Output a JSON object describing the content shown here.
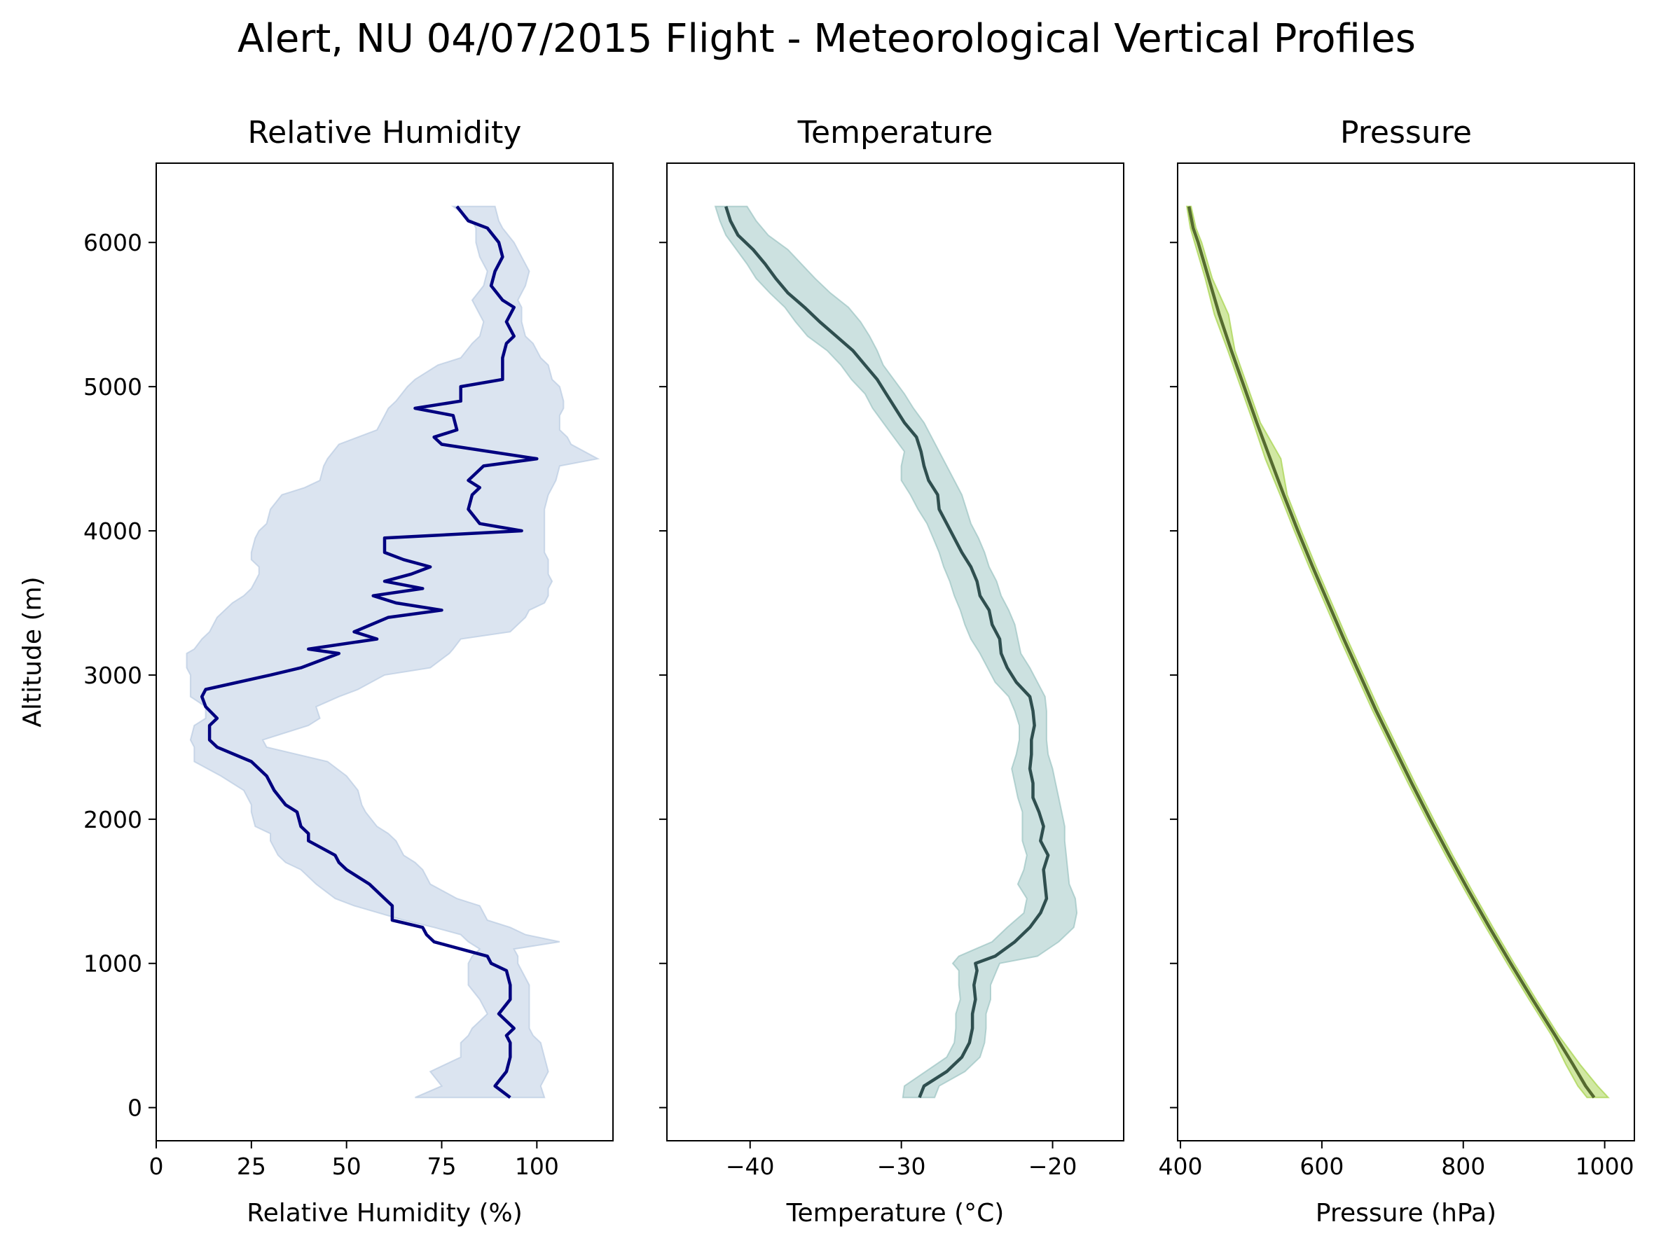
{
  "suptitle": "Alert, NU 04/07/2015 Flight - Meteorological Vertical Profiles",
  "chart_data": [
    {
      "type": "line",
      "title": "Relative Humidity",
      "xlabel": "Relative Humidity (%)",
      "ylabel": "Altitude (m)",
      "xlim": [
        0,
        120
      ],
      "ylim": [
        -230,
        6550
      ],
      "xticks": [
        0,
        25,
        50,
        75,
        100
      ],
      "yticks": [
        0,
        1000,
        2000,
        3000,
        4000,
        5000,
        6000
      ],
      "line_color": "#00007f",
      "band_color": "#b0c4de",
      "series": [
        {
          "altitude": [
            70,
            150,
            250,
            350,
            450,
            500,
            550,
            650,
            750,
            850,
            950,
            1000,
            1050,
            1100,
            1150,
            1200,
            1250,
            1300,
            1400,
            1450,
            1550,
            1650,
            1700,
            1750,
            1850,
            1900,
            1950,
            2050,
            2100,
            2200,
            2300,
            2400,
            2500,
            2550,
            2650,
            2700,
            2780,
            2850,
            2900,
            3000,
            3050,
            3150,
            3180,
            3250,
            3300,
            3400,
            3450,
            3500,
            3550,
            3600,
            3650,
            3700,
            3750,
            3800,
            3850,
            3950,
            4000,
            4050,
            4150,
            4250,
            4300,
            4350,
            4450,
            4500,
            4600,
            4650,
            4700,
            4800,
            4850,
            4900,
            5000,
            5050,
            5150,
            5200,
            5300,
            5350,
            5450,
            5550,
            5600,
            5700,
            5800,
            5900,
            6000,
            6100,
            6150,
            6250
          ],
          "values": [
            93,
            89,
            92,
            93,
            93,
            92,
            94,
            90,
            93,
            93,
            92,
            88,
            87,
            80,
            73,
            71,
            70,
            62,
            62,
            60,
            56,
            50,
            48,
            47,
            40,
            40,
            38,
            37,
            34,
            31,
            29,
            25,
            16,
            14,
            14,
            16,
            13,
            12,
            13,
            30,
            38,
            48,
            40,
            58,
            52,
            61,
            75,
            63,
            57,
            70,
            60,
            67,
            72,
            65,
            60,
            60,
            96,
            85,
            82,
            83,
            85,
            82,
            86,
            100,
            75,
            73,
            79,
            78,
            68,
            80,
            80,
            91,
            91,
            91,
            92,
            94,
            92,
            94,
            91,
            88,
            89,
            91,
            90,
            87,
            82,
            79
          ],
          "lower": [
            68,
            75,
            72,
            80,
            80,
            82,
            83,
            87,
            85,
            82,
            82,
            82,
            83,
            85,
            82,
            80,
            73,
            65,
            52,
            47,
            42,
            38,
            34,
            32,
            30,
            30,
            26,
            25,
            25,
            23,
            17,
            10,
            10,
            9,
            10,
            13,
            13,
            9,
            9,
            9,
            8,
            8,
            10,
            12,
            14,
            16,
            18,
            20,
            23,
            25,
            26,
            27,
            27,
            25,
            25,
            26,
            27,
            29,
            30,
            33,
            39,
            43,
            44,
            45,
            48,
            53,
            58,
            60,
            61,
            63,
            66,
            68,
            74,
            80,
            83,
            85,
            86,
            84,
            83,
            86,
            87,
            85,
            84,
            84,
            83,
            78
          ],
          "upper": [
            102,
            101,
            103,
            102,
            101,
            99,
            98,
            98,
            98,
            98,
            96,
            95,
            95,
            94,
            106,
            97,
            93,
            87,
            85,
            79,
            72,
            70,
            68,
            65,
            63,
            61,
            58,
            55,
            54,
            53,
            50,
            45,
            29,
            28,
            40,
            43,
            42,
            48,
            53,
            60,
            72,
            77,
            78,
            80,
            93,
            97,
            98,
            102,
            103,
            103,
            104,
            103,
            103,
            103,
            102,
            102,
            102,
            102,
            102,
            103,
            104,
            105,
            106,
            116,
            109,
            108,
            106,
            106,
            107,
            107,
            106,
            104,
            103,
            101,
            99,
            97,
            96,
            96,
            95,
            97,
            98,
            96,
            94,
            91,
            90,
            89
          ]
        }
      ]
    },
    {
      "type": "line",
      "title": "Temperature",
      "xlabel": "Temperature (°C)",
      "xlim": [
        -45.5,
        -15.3
      ],
      "xticks": [
        -40,
        -30,
        -20
      ],
      "line_color": "#2f4f4f",
      "band_color": "#8fbcbb",
      "series": [
        {
          "altitude": [
            70,
            150,
            250,
            350,
            450,
            550,
            650,
            750,
            850,
            950,
            1000,
            1050,
            1150,
            1250,
            1350,
            1450,
            1550,
            1650,
            1750,
            1850,
            1950,
            2050,
            2150,
            2250,
            2350,
            2450,
            2550,
            2650,
            2750,
            2850,
            2950,
            3050,
            3150,
            3250,
            3350,
            3450,
            3550,
            3650,
            3750,
            3850,
            3950,
            4050,
            4150,
            4250,
            4350,
            4450,
            4550,
            4650,
            4750,
            4850,
            4950,
            5050,
            5150,
            5250,
            5350,
            5450,
            5550,
            5650,
            5750,
            5850,
            5950,
            6050,
            6150,
            6250
          ],
          "values": [
            -28.8,
            -28.5,
            -27.0,
            -26.0,
            -25.5,
            -25.3,
            -25.3,
            -25.1,
            -25.2,
            -25.0,
            -25.1,
            -23.8,
            -22.5,
            -21.5,
            -20.8,
            -20.4,
            -20.5,
            -20.6,
            -20.3,
            -20.8,
            -20.6,
            -20.9,
            -21.3,
            -21.3,
            -21.5,
            -21.4,
            -21.4,
            -21.2,
            -21.3,
            -21.5,
            -22.4,
            -23.0,
            -23.4,
            -23.5,
            -24.0,
            -24.2,
            -24.8,
            -25.0,
            -25.4,
            -26.0,
            -26.5,
            -27.0,
            -27.5,
            -27.6,
            -28.2,
            -28.5,
            -28.7,
            -29.0,
            -29.8,
            -30.4,
            -31.0,
            -31.6,
            -32.4,
            -33.2,
            -34.3,
            -35.4,
            -36.4,
            -37.5,
            -38.3,
            -39.0,
            -39.8,
            -40.8,
            -41.3,
            -41.6
          ],
          "lower": [
            -29.9,
            -29.8,
            -28.4,
            -27.0,
            -26.5,
            -26.4,
            -26.4,
            -26.1,
            -26.2,
            -26.2,
            -26.6,
            -26.2,
            -24.0,
            -23.0,
            -21.9,
            -21.7,
            -22.3,
            -21.9,
            -21.7,
            -22.0,
            -22.0,
            -22.0,
            -22.3,
            -22.5,
            -22.7,
            -22.4,
            -22.2,
            -22.2,
            -22.5,
            -22.9,
            -23.8,
            -24.3,
            -24.8,
            -25.4,
            -25.8,
            -26.1,
            -26.5,
            -26.8,
            -27.2,
            -27.5,
            -27.9,
            -28.3,
            -28.9,
            -29.4,
            -30.0,
            -30.0,
            -29.8,
            -30.5,
            -31.2,
            -31.9,
            -32.4,
            -33.3,
            -34.0,
            -34.9,
            -36.2,
            -37.0,
            -37.7,
            -38.7,
            -39.6,
            -40.2,
            -40.9,
            -41.6,
            -42.0,
            -42.3
          ],
          "upper": [
            -27.8,
            -27.5,
            -25.8,
            -24.8,
            -24.5,
            -24.4,
            -24.4,
            -24.1,
            -24.1,
            -23.7,
            -23.5,
            -21.0,
            -19.6,
            -18.6,
            -18.4,
            -18.5,
            -18.9,
            -19.0,
            -19.1,
            -19.2,
            -19.2,
            -19.4,
            -19.6,
            -19.8,
            -20.0,
            -20.3,
            -20.4,
            -20.4,
            -20.4,
            -20.5,
            -21.0,
            -21.5,
            -22.1,
            -22.3,
            -22.5,
            -22.9,
            -23.4,
            -23.7,
            -24.2,
            -24.5,
            -24.9,
            -25.4,
            -25.7,
            -26.0,
            -26.5,
            -27.0,
            -27.5,
            -28.0,
            -28.5,
            -29.2,
            -29.8,
            -30.5,
            -31.2,
            -31.6,
            -32.1,
            -32.7,
            -33.5,
            -34.7,
            -35.7,
            -36.6,
            -37.5,
            -38.8,
            -39.6,
            -40.2
          ]
        }
      ]
    },
    {
      "type": "line",
      "title": "Pressure",
      "xlabel": "Pressure (hPa)",
      "xlim": [
        396,
        1042
      ],
      "xticks": [
        400,
        600,
        800,
        1000
      ],
      "line_color": "#556b2f",
      "band_color": "#9acd32",
      "series": [
        {
          "altitude": [
            70,
            150,
            300,
            500,
            750,
            1000,
            1250,
            1500,
            1750,
            2000,
            2250,
            2500,
            2750,
            3000,
            3250,
            3500,
            3750,
            4000,
            4250,
            4500,
            4750,
            5000,
            5250,
            5500,
            5750,
            6000,
            6100,
            6250
          ],
          "values": [
            985,
            973,
            955,
            930,
            898,
            867,
            837,
            808,
            780,
            753,
            727,
            702,
            677,
            654,
            631,
            609,
            587,
            566,
            546,
            527,
            508,
            490,
            472,
            455,
            440,
            425,
            418,
            412
          ],
          "lower": [
            975,
            962,
            945,
            925,
            893,
            862,
            832,
            803,
            775,
            748,
            722,
            697,
            672,
            649,
            626,
            604,
            582,
            561,
            541,
            520,
            503,
            485,
            467,
            448,
            435,
            420,
            414,
            409
          ],
          "upper": [
            1005,
            990,
            965,
            935,
            903,
            872,
            842,
            813,
            785,
            758,
            732,
            707,
            682,
            659,
            636,
            614,
            592,
            571,
            551,
            542,
            513,
            495,
            477,
            468,
            445,
            430,
            422,
            415
          ]
        }
      ]
    }
  ]
}
